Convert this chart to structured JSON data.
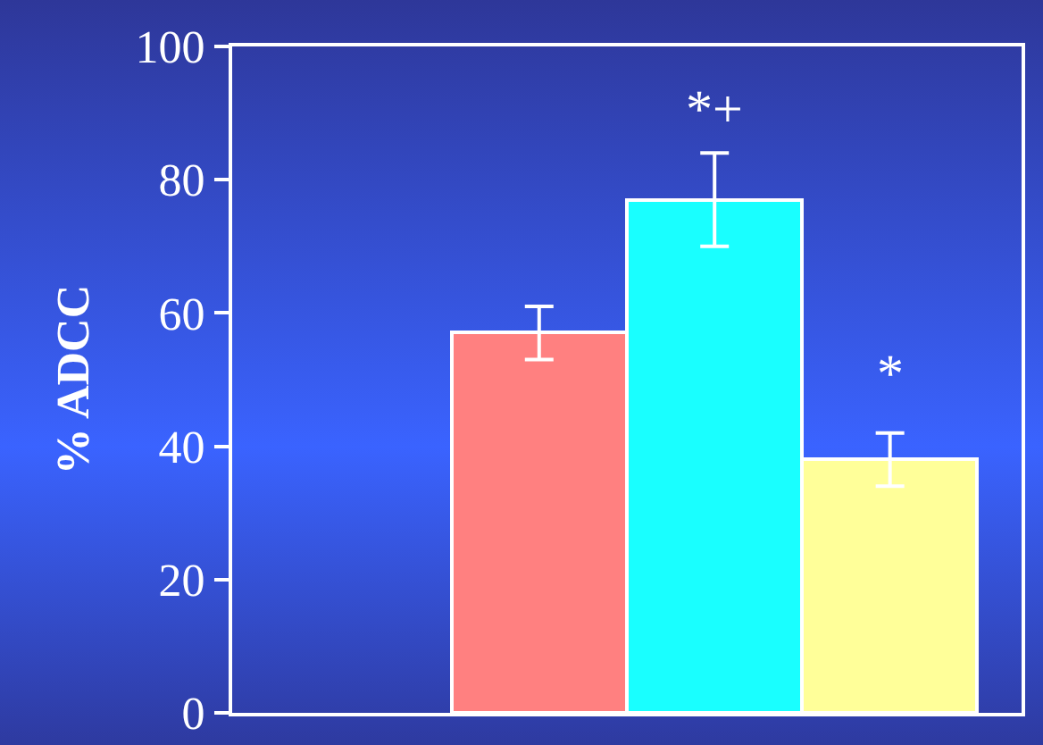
{
  "chart_data": {
    "type": "bar",
    "ylabel": "% ADCC",
    "categories": [
      null,
      null,
      null
    ],
    "values": [
      57,
      77,
      38
    ],
    "colors": [
      "#ff8080",
      "#19ffff",
      "#ffff99"
    ],
    "errors": [
      4,
      7,
      4
    ],
    "ylim": [
      0,
      100
    ],
    "yticks": [
      0,
      20,
      40,
      60,
      80,
      100
    ],
    "grid": false,
    "annotations": [
      "*+",
      "*"
    ]
  }
}
